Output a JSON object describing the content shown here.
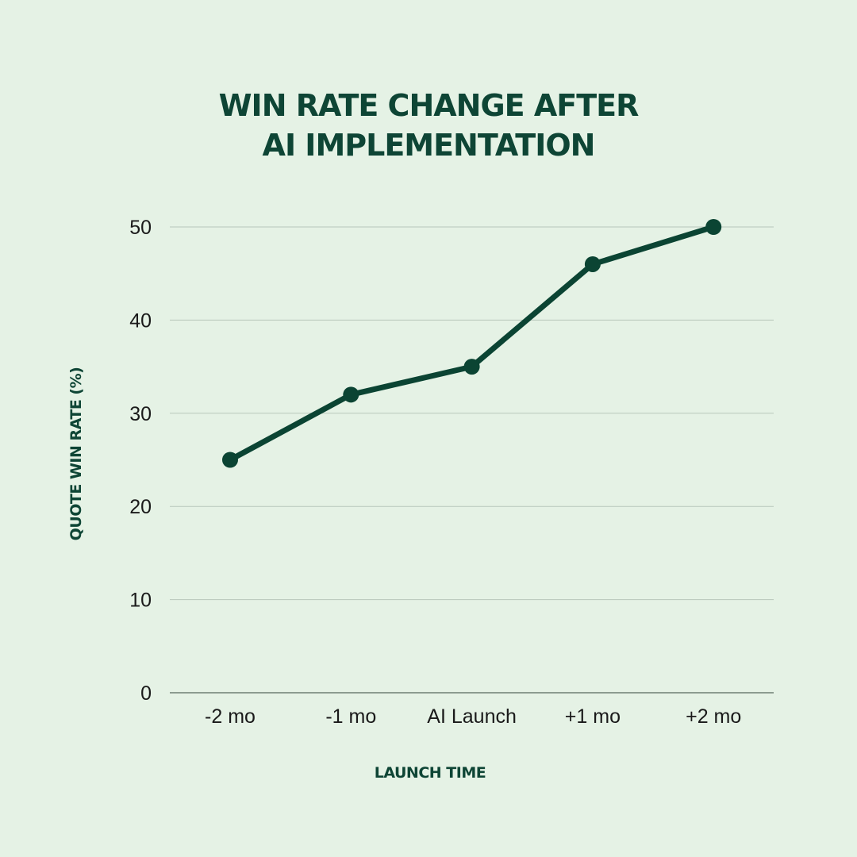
{
  "colors": {
    "background": "#e5f2e5",
    "series": "#0b4433",
    "gridline": "#b8c7bb",
    "axis": "#6f7f74",
    "title": "#0e4535"
  },
  "chart_data": {
    "type": "line",
    "title_lines": [
      "WIN RATE CHANGE AFTER",
      "AI IMPLEMENTATION"
    ],
    "xlabel": "LAUNCH TIME",
    "ylabel": "QUOTE WIN RATE (%)",
    "categories": [
      "-2 mo",
      "-1 mo",
      "AI Launch",
      "+1 mo",
      "+2 mo"
    ],
    "series": [
      {
        "values": [
          25,
          32,
          35,
          46,
          50
        ]
      }
    ],
    "ylim": [
      0,
      50
    ],
    "yticks": [
      0,
      10,
      20,
      30,
      40,
      50
    ],
    "grid": true,
    "legend": "none",
    "markers": true
  }
}
